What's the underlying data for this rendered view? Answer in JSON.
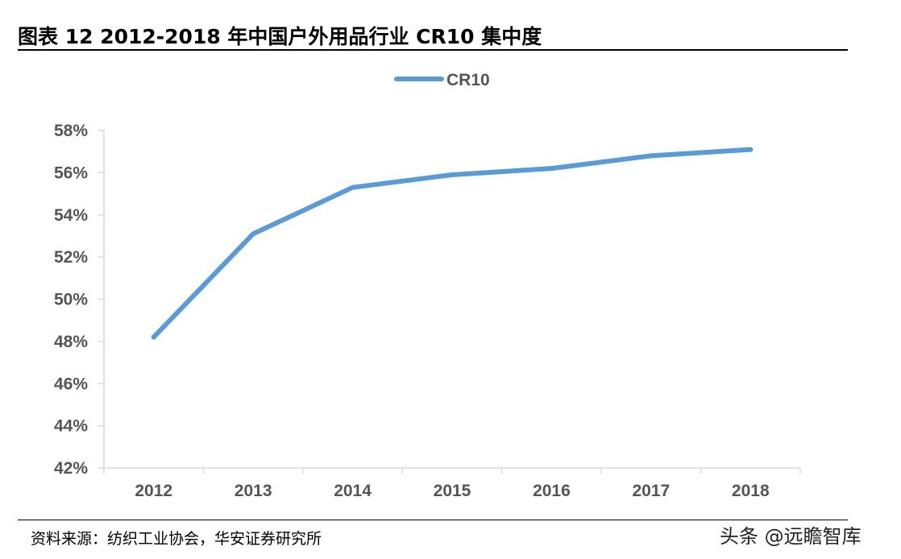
{
  "figure": {
    "title": "图表 12 2012-2018 年中国户外用品行业 CR10 集中度",
    "source": "资料来源：纺织工业协会，华安证券研究所",
    "watermark": "头条 @远瞻智库"
  },
  "chart_data": {
    "type": "line",
    "title": "",
    "xlabel": "",
    "ylabel": "",
    "x": [
      "2012",
      "2013",
      "2014",
      "2015",
      "2016",
      "2017",
      "2018"
    ],
    "series": [
      {
        "name": "CR10",
        "color": "#5b9bd5",
        "values": [
          48.2,
          53.1,
          55.3,
          55.9,
          56.2,
          56.8,
          57.1
        ]
      }
    ],
    "ylim": [
      42,
      58
    ],
    "yticks": [
      42,
      44,
      46,
      48,
      50,
      52,
      54,
      56,
      58
    ],
    "ytick_format": "%",
    "grid": false,
    "legend": "top-center"
  }
}
